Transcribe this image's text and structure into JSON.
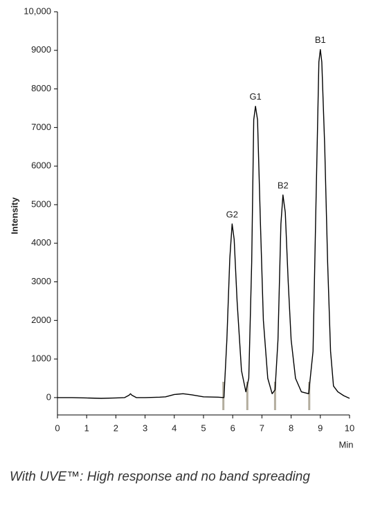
{
  "chart_data": {
    "type": "line",
    "x_label": "Min",
    "y_label": "Intensity",
    "caption": "With UVE™: High response and no band spreading",
    "xlim": [
      0,
      10
    ],
    "xticks": [
      0,
      1,
      2,
      3,
      4,
      5,
      6,
      7,
      8,
      9,
      10
    ],
    "ylim": [
      -450,
      10000
    ],
    "yticks": [
      0,
      1000,
      2000,
      3000,
      4000,
      5000,
      6000,
      7000,
      8000,
      9000,
      {
        "value": 10000,
        "label": "10,000"
      }
    ],
    "series": [
      {
        "color": "#000000",
        "x": [
          0,
          0.5,
          1,
          1.5,
          2,
          2.3,
          2.45,
          2.5,
          2.55,
          2.7,
          3,
          3.5,
          3.7,
          4,
          4.3,
          4.6,
          5,
          5.5,
          5.7,
          5.8,
          5.9,
          5.98,
          6.05,
          6.15,
          6.3,
          6.45,
          6.55,
          6.65,
          6.72,
          6.78,
          6.85,
          6.95,
          7.05,
          7.2,
          7.35,
          7.45,
          7.55,
          7.65,
          7.72,
          7.8,
          7.9,
          8.0,
          8.15,
          8.35,
          8.6,
          8.75,
          8.85,
          8.95,
          9.0,
          9.05,
          9.15,
          9.25,
          9.35,
          9.45,
          9.6,
          9.8,
          10
        ],
        "values": [
          0,
          0,
          -10,
          -20,
          -10,
          0,
          60,
          100,
          60,
          0,
          0,
          10,
          20,
          80,
          100,
          70,
          20,
          10,
          0,
          1500,
          3600,
          4500,
          4100,
          2500,
          700,
          150,
          500,
          3500,
          7200,
          7550,
          7200,
          4500,
          2000,
          500,
          100,
          200,
          1500,
          4500,
          5250,
          4800,
          3000,
          1500,
          500,
          150,
          100,
          1200,
          5000,
          8700,
          9020,
          8700,
          6500,
          3500,
          1200,
          300,
          150,
          50,
          -20
        ]
      }
    ],
    "peaks": [
      {
        "label": "G2",
        "x": 5.98,
        "y": 4500
      },
      {
        "label": "G1",
        "x": 6.78,
        "y": 7550
      },
      {
        "label": "B2",
        "x": 7.72,
        "y": 5250
      },
      {
        "label": "B1",
        "x": 9.0,
        "y": 9020
      }
    ],
    "markers_x": [
      5.68,
      6.5,
      7.45,
      8.62
    ],
    "marker_color": "#b3ad9e"
  }
}
